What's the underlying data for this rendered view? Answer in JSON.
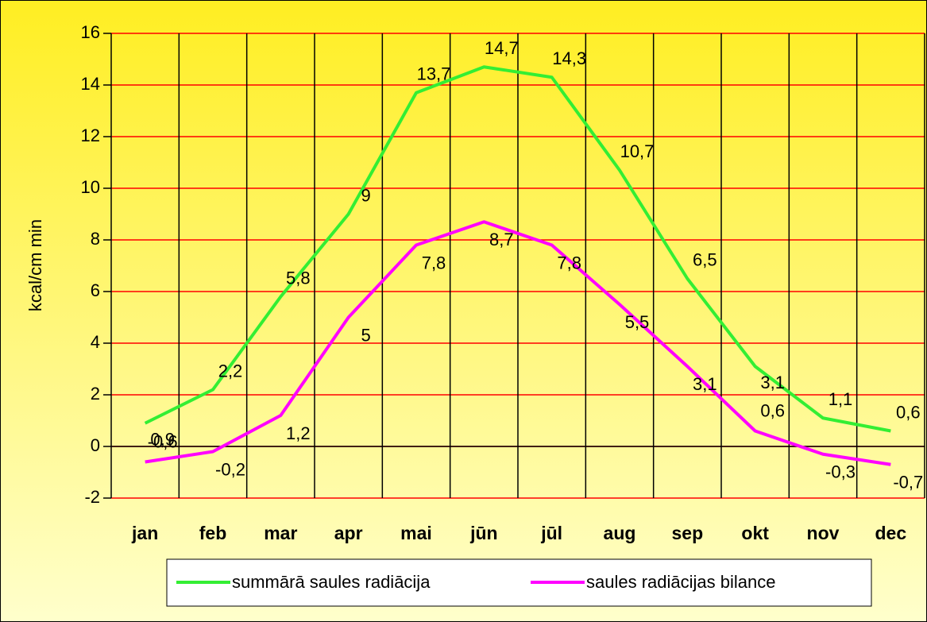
{
  "chart_data": {
    "type": "line",
    "y_label": "kcal/cm  min",
    "categories": [
      "jan",
      "feb",
      "mar",
      "apr",
      "mai",
      "jūn",
      "jūl",
      "aug",
      "sep",
      "okt",
      "nov",
      "dec"
    ],
    "series": [
      {
        "name": "summārā saules radiācija",
        "color": "#33ee33",
        "values": [
          0.9,
          2.2,
          5.8,
          9,
          13.7,
          14.7,
          14.3,
          10.7,
          6.5,
          3.1,
          1.1,
          0.6
        ],
        "value_labels": [
          "0,9",
          "2,2",
          "5,8",
          "9",
          "13,7",
          "14,7",
          "14,3",
          "10,7",
          "6,5",
          "3,1",
          "1,1",
          "0,6"
        ]
      },
      {
        "name": "saules radiācijas bilance",
        "color": "#ff00ff",
        "values": [
          -0.6,
          -0.2,
          1.2,
          5,
          7.8,
          8.7,
          7.8,
          5.5,
          3.1,
          0.6,
          -0.3,
          -0.7
        ],
        "value_labels": [
          "-0,6",
          "-0,2",
          "1,2",
          "5",
          "7,8",
          "8,7",
          "7,8",
          "5,5",
          "3,1",
          "0,6",
          "-0,3",
          "-0,7"
        ]
      }
    ],
    "ylim": [
      -2,
      16
    ],
    "yticks": [
      -2,
      0,
      2,
      4,
      6,
      8,
      10,
      12,
      14,
      16
    ],
    "grid": true,
    "legend": "bottom"
  }
}
